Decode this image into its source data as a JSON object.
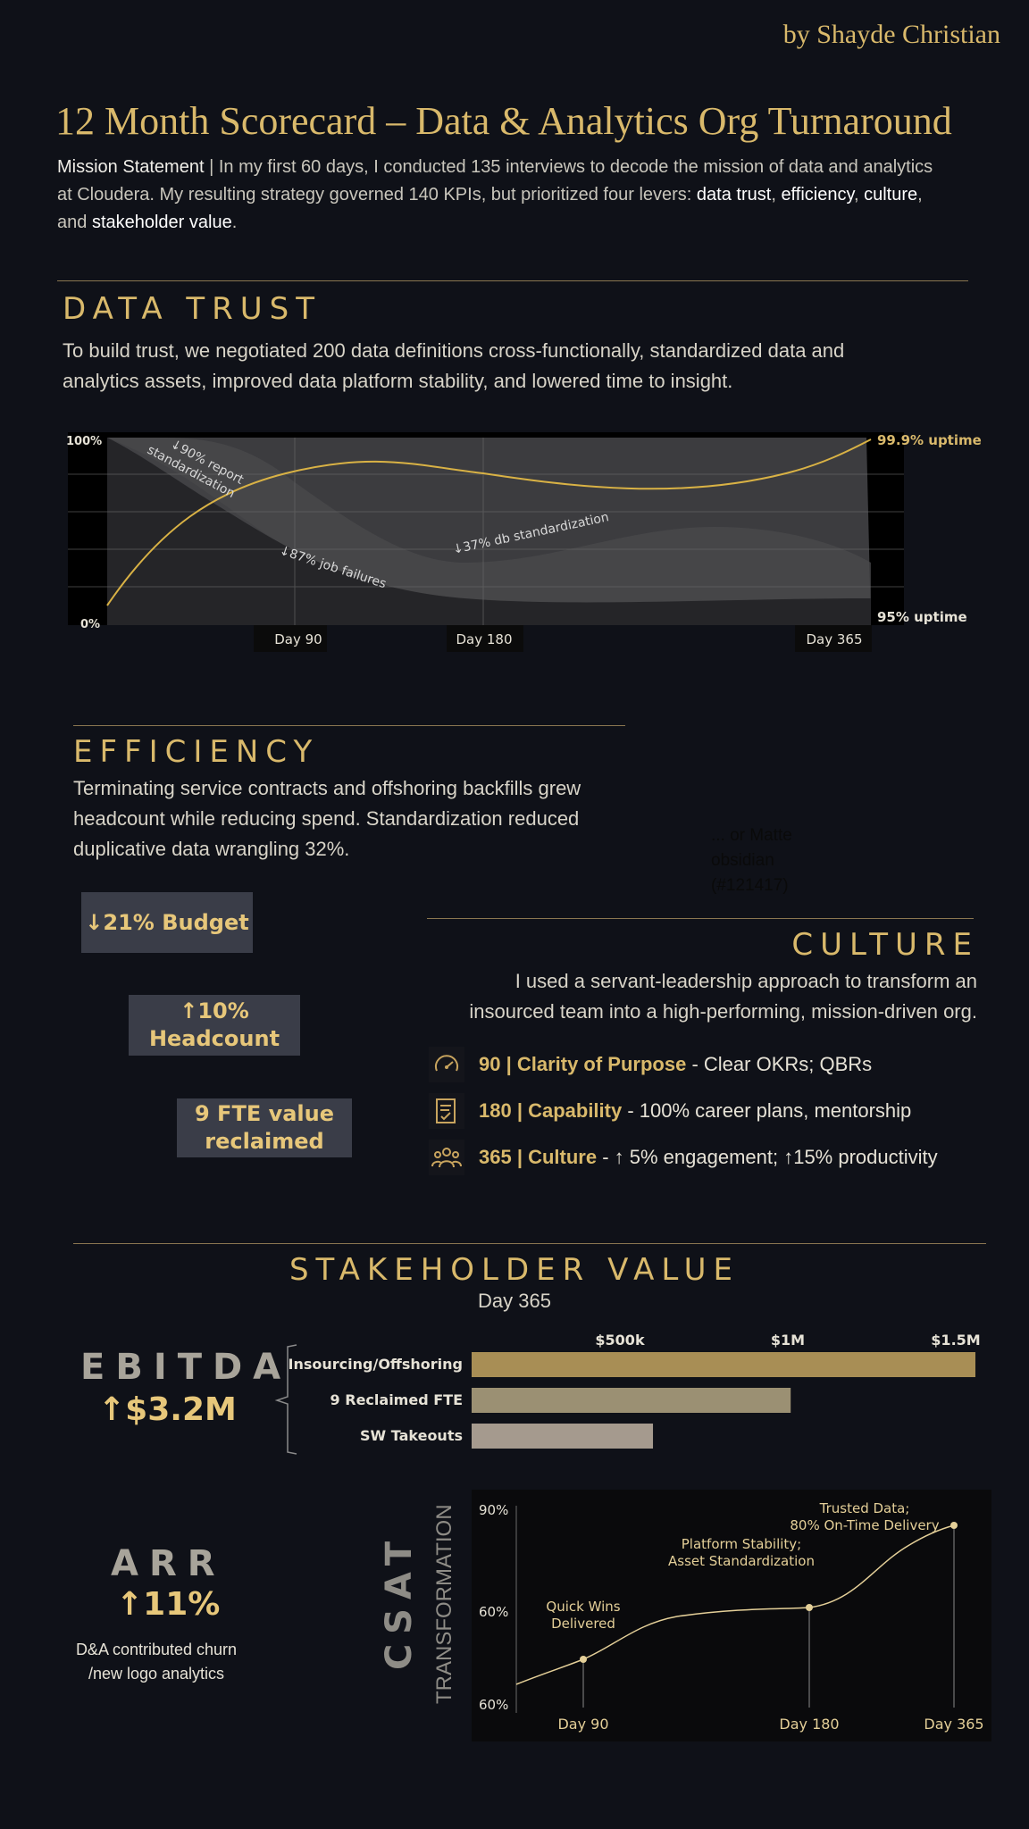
{
  "byline": "by Shayde Christian",
  "header": {
    "title": "12 Month Scorecard – Data & Analytics Org Turnaround",
    "mission_label": "Mission Statement",
    "mission_text_1": "In my first 60 days, I conducted 135 interviews to decode the mission of data and analytics",
    "mission_text_2": "at Cloudera. My resulting strategy governed 140 KPIs, but prioritized four levers:",
    "lever_1": "data trust",
    "lever_2": "efficiency",
    "lever_3": "culture",
    "lever_4": "stakeholder value",
    "and_word": "and"
  },
  "data_trust": {
    "title": "DATA TRUST",
    "text_1": "To build trust, we negotiated 200 data definitions cross-functionally, standardized data and",
    "text_2": "analytics assets, improved data platform stability, and lowered time to insight."
  },
  "efficiency": {
    "title": "EFFICIENCY",
    "text_1": "Terminating service contracts and offshoring backfills grew",
    "text_2": "headcount while reducing spend. Standardization reduced",
    "text_3": "duplicative data wrangling 32%.",
    "pill_budget": "↓21% Budget",
    "pill_headcount_1": "↑10%",
    "pill_headcount_2": "Headcount",
    "pill_fte_1": "9 FTE value",
    "pill_fte_2": "reclaimed",
    "note_1": "... or Matte",
    "note_2": "obsidian",
    "note_3": "(#121417)"
  },
  "culture": {
    "title": "CULTURE",
    "text_1": "I used a servant-leadership approach to transform an",
    "text_2": "insourced team into a high-performing, mission-driven org.",
    "items": [
      {
        "icon": "gauge-icon",
        "head": "90 | Clarity of Purpose",
        "rest": " - Clear OKRs; QBRs"
      },
      {
        "icon": "checklist-icon",
        "head": "180 | Capability",
        "rest": " - 100% career plans, mentorship"
      },
      {
        "icon": "team-icon",
        "head": "365 | Culture",
        "rest": " - ↑ 5% engagement;  ↑15% productivity"
      }
    ]
  },
  "stakeholder": {
    "title": "STAKEHOLDER VALUE",
    "subtitle": "Day 365",
    "ebitda_label": "EBITDA",
    "ebitda_value": "↑$3.2M",
    "arr_label": "ARR",
    "arr_value": "↑11%",
    "arr_note_1": "D&A contributed churn",
    "arr_note_2": "/new logo analytics",
    "csat_label": "CSAT",
    "csat_sub": "TRANSFORMATION"
  },
  "chart_data": [
    {
      "type": "area",
      "title": "",
      "x_ticks": [
        "Day 90",
        "Day 180",
        "Day 365"
      ],
      "y_ticks": [
        "0%",
        "100%"
      ],
      "annotations": [
        "↓90% report standardization",
        "↓87% job failures",
        "↓37% db standardization"
      ],
      "right_labels": {
        "top": "99.9% uptime",
        "bottom": "95% uptime"
      },
      "series": [
        {
          "name": "uptime",
          "x": [
            0,
            90,
            180,
            270,
            365
          ],
          "y": [
            8,
            76,
            81,
            72,
            99.9
          ]
        }
      ]
    },
    {
      "type": "bar",
      "orientation": "horizontal",
      "categories": [
        "Insourcing/Offshoring",
        "9 Reclaimed FTE",
        "SW Takeouts"
      ],
      "values": [
        1500000,
        950000,
        540000
      ],
      "x_ticks": [
        "$500k",
        "$1M",
        "$1.5M"
      ],
      "xlim": [
        0,
        1500000
      ],
      "colors": [
        "#a88e55",
        "#9b9073",
        "#a59a8e"
      ]
    },
    {
      "type": "line",
      "x_ticks": [
        "Day 90",
        "Day 180",
        "Day 365"
      ],
      "y_ticks": [
        "90%",
        "60%",
        "60%"
      ],
      "points": [
        {
          "x": "Day 90",
          "label_1": "Quick Wins",
          "label_2": "Delivered"
        },
        {
          "x": "Day 180",
          "label_1": "Platform Stability;",
          "label_2": "Asset Standardization"
        },
        {
          "x": "Day 365",
          "label_1": "Trusted Data;",
          "label_2": "80% On-Time Delivery"
        }
      ]
    }
  ]
}
